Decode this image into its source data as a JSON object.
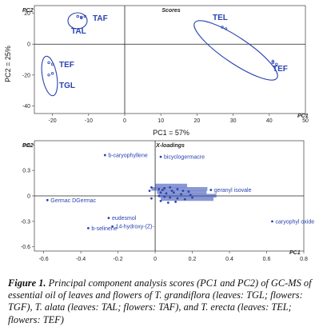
{
  "chart_data": [
    {
      "type": "scatter",
      "title": "Scores",
      "corner_label": "PC2",
      "axis_label": "PC1",
      "xlabel": "PC1 = 57%",
      "ylabel": "PC2 = 25%",
      "xlim": [
        -25,
        50
      ],
      "ylim": [
        -45,
        25
      ],
      "xticks": [
        -20,
        -10,
        0,
        10,
        20,
        30,
        40,
        50
      ],
      "yticks": [
        -40,
        -20,
        0,
        20
      ],
      "point_color": "#2a43b0",
      "groups": [
        {
          "label": "TAF",
          "points": [
            [
              -13,
              18
            ],
            [
              -12,
              17
            ],
            [
              -11,
              18
            ]
          ]
        },
        {
          "label": "TAL",
          "points": [
            [
              -12,
              17.5
            ]
          ]
        },
        {
          "label": "TEL",
          "points": [
            [
              27,
              11
            ],
            [
              28,
              10
            ]
          ]
        },
        {
          "label": "TEF",
          "points": [
            [
              41,
              -12
            ],
            [
              42,
              -13
            ],
            [
              41,
              -11
            ]
          ]
        },
        {
          "label": "TEF",
          "points": [
            [
              -21,
              -12
            ],
            [
              -20,
              -13
            ]
          ]
        },
        {
          "label": "TGL",
          "points": [
            [
              -21,
              -20
            ],
            [
              -20,
              -19
            ]
          ]
        }
      ]
    },
    {
      "type": "scatter",
      "title": "X-loadings",
      "corner_label": "PC2",
      "axis_label": "PC1",
      "xlim": [
        -0.65,
        0.8
      ],
      "ylim": [
        -0.65,
        0.65
      ],
      "xticks": [
        -0.6,
        -0.4,
        -0.2,
        0,
        0.2,
        0.4,
        0.6,
        0.8
      ],
      "yticks": [
        -0.6,
        -0.3,
        0,
        0.3,
        0.6
      ],
      "point_color": "#2a43b0",
      "labeled_points": [
        {
          "label": "b-caryophyllene",
          "x": -0.27,
          "y": 0.48
        },
        {
          "label": "bicyclogermacre",
          "x": 0.03,
          "y": 0.46
        },
        {
          "label": "geranyl isovale",
          "x": 0.3,
          "y": 0.07
        },
        {
          "label": "Germac DGermac",
          "x": -0.58,
          "y": -0.05
        },
        {
          "label": "caryophyl oxide",
          "x": 0.63,
          "y": -0.3
        },
        {
          "label": "eudesmol",
          "x": -0.25,
          "y": -0.26
        },
        {
          "label": "14-hydroxy-(Z)-",
          "x": -0.23,
          "y": -0.36
        },
        {
          "label": "b-selinene",
          "x": -0.36,
          "y": -0.38
        }
      ],
      "cluster_points": [
        [
          -0.02,
          0.1
        ],
        [
          0.02,
          0.08
        ],
        [
          0.05,
          0.09
        ],
        [
          0.08,
          0.1
        ],
        [
          0.12,
          0.08
        ],
        [
          0.15,
          0.06
        ],
        [
          0.18,
          0.05
        ],
        [
          0.03,
          0.04
        ],
        [
          0.06,
          0.03
        ],
        [
          0.1,
          0.04
        ],
        [
          0.02,
          0.0
        ],
        [
          0.05,
          -0.01
        ],
        [
          0.08,
          -0.02
        ],
        [
          0.12,
          -0.03
        ],
        [
          0.16,
          -0.04
        ],
        [
          0.2,
          -0.02
        ],
        [
          0.03,
          -0.06
        ],
        [
          0.07,
          -0.08
        ],
        [
          0.11,
          -0.07
        ],
        [
          -0.03,
          0.06
        ],
        [
          -0.02,
          -0.03
        ],
        [
          0.14,
          0.02
        ],
        [
          0.09,
          0.06
        ],
        [
          0.04,
          0.07
        ],
        [
          0.19,
          0.01
        ]
      ]
    }
  ],
  "caption": {
    "label": "Figure 1.",
    "text": "Principal component analysis scores (PC1 and PC2) of GC-MS of essential oil of leaves and flowers of T. grandiflora (leaves: TGL; flowers: TGF), T. alata (leaves: TAL; flowers: TAF), and T. erecta (leaves: TEL; flowers: TEF)"
  }
}
